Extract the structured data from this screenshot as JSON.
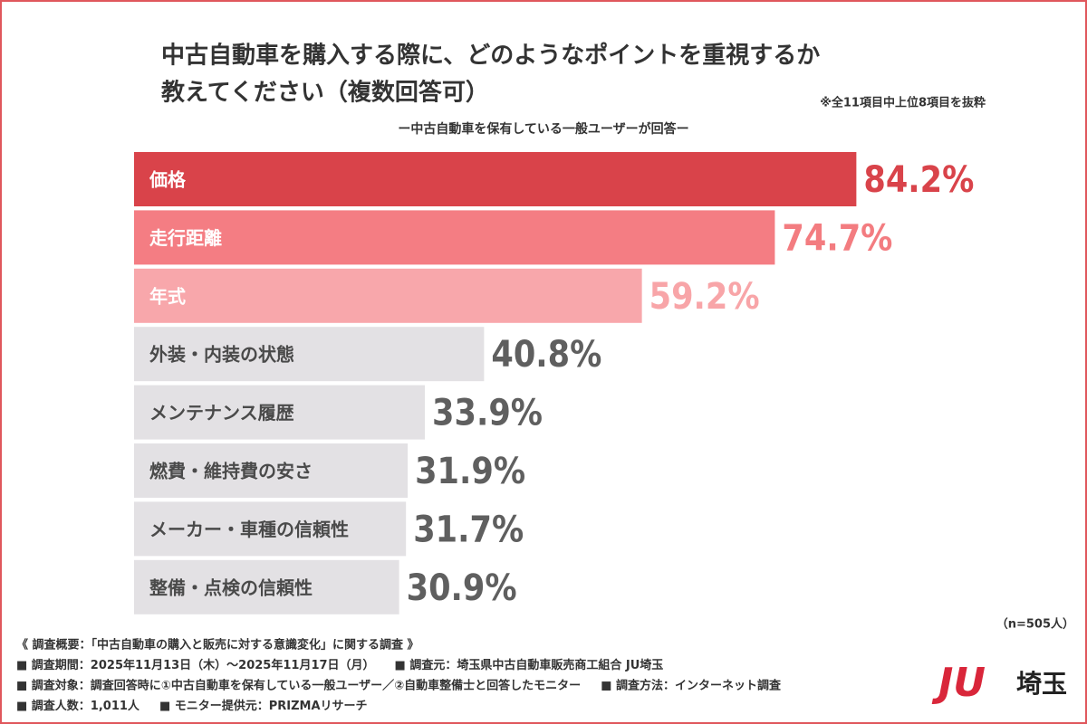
{
  "chart_data": {
    "type": "barh",
    "title": [
      "中古自動車を購入する際に、どのようなポイントを重視するか",
      "教えてください（複数回答可）"
    ],
    "note": "※全11項目中上位8項目を抜粋",
    "subtitle": "ー中古自動車を保有している一般ユーザーが回答ー",
    "sample": "（n=505人）",
    "categories": [
      "価格",
      "走行距離",
      "年式",
      "外装・内装の状態",
      "メンテナンス履歴",
      "燃費・維持費の安さ",
      "メーカー・車種の信頼性",
      "整備・点検の信頼性"
    ],
    "values": [
      84.2,
      74.7,
      59.2,
      40.8,
      33.9,
      31.9,
      31.7,
      30.9
    ],
    "value_labels": [
      "84.2%",
      "74.7%",
      "59.2%",
      "40.8%",
      "33.9%",
      "31.9%",
      "31.7%",
      "30.9%"
    ],
    "colors": [
      "#d9434a",
      "#f47d83",
      "#f8a7ab",
      "#e3e1e4",
      "#e3e1e4",
      "#e3e1e4",
      "#e3e1e4",
      "#e3e1e4"
    ],
    "label_colors": [
      "#d9434a",
      "#f37c80",
      "#f8a5a8",
      "#5f5f5f",
      "#5f5f5f",
      "#5f5f5f",
      "#5f5f5f",
      "#5f5f5f"
    ]
  },
  "footnotes": [
    [
      "《 調査概要：「中古自動車の購入と販売に対する意識変化」に関する調査 》"
    ],
    [
      "■ 調査期間：2025年11月13日（木）〜2025年11月17日（月）",
      "■ 調査元：埼玉県中古自動車販売商工組合 JU埼玉"
    ],
    [
      "■ 調査対象：調査回答時に①中古自動車を保有している一般ユーザー／②自動車整備士と回答したモニター",
      "■ 調査方法：インターネット調査"
    ],
    [
      "■ 調査人数：1,011人",
      "■ モニター提供元：PRIZMAリサーチ"
    ]
  ],
  "logo": {
    "mark": "JU",
    "text": "埼玉"
  }
}
